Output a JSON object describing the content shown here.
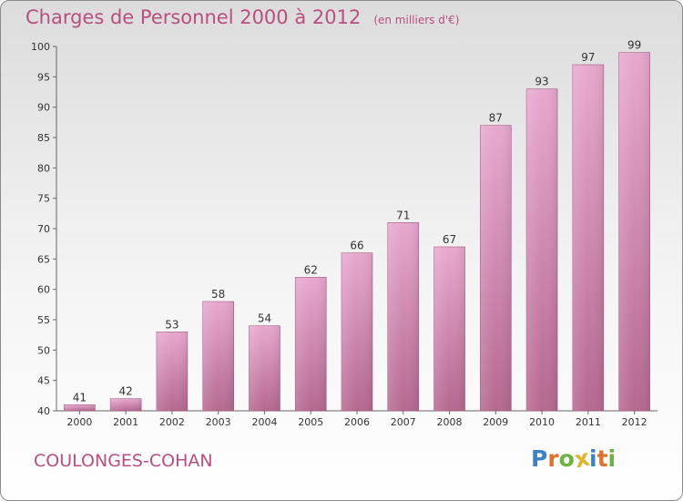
{
  "title": "Charges de Personnel 2000 à 2012",
  "subtitle": "(en milliers d'€)",
  "city": "COULONGES-COHAN",
  "logo": {
    "letters": [
      "P",
      "r",
      "o",
      "x",
      "i",
      "t",
      "i"
    ],
    "colors": [
      "#3b82c8",
      "#e0732c",
      "#6db33f",
      "#e0b52c",
      "#3b82c8",
      "#e0732c",
      "#6db33f"
    ]
  },
  "colors": {
    "bar_top": "#e8a8ce",
    "bar_bottom": "#b5688f",
    "text": "#b84f80"
  },
  "chart_data": {
    "type": "bar",
    "title": "Charges de Personnel 2000 à 2012",
    "subtitle": "(en milliers d'€)",
    "categories": [
      "2000",
      "2001",
      "2002",
      "2003",
      "2004",
      "2005",
      "2006",
      "2007",
      "2008",
      "2009",
      "2010",
      "2011",
      "2012"
    ],
    "values": [
      41,
      42,
      53,
      58,
      54,
      62,
      66,
      71,
      67,
      87,
      93,
      97,
      99
    ],
    "ylim": [
      40,
      100
    ],
    "yticks": [
      40,
      45,
      50,
      55,
      60,
      65,
      70,
      75,
      80,
      85,
      90,
      95,
      100
    ],
    "grid": false,
    "data_labels": true
  }
}
